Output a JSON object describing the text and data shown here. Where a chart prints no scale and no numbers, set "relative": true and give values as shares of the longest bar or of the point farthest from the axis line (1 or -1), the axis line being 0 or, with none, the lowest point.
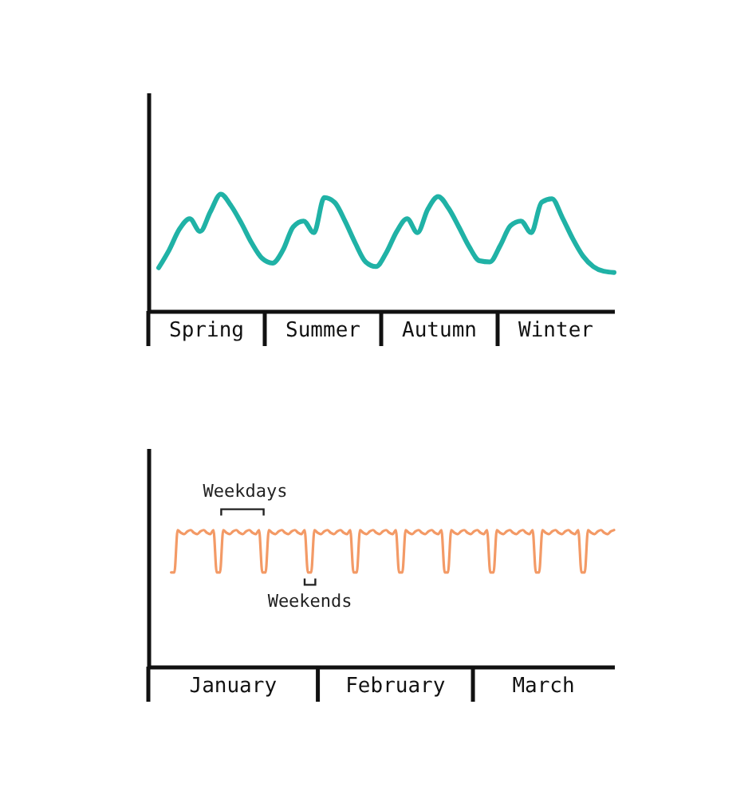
{
  "chart_data": [
    {
      "type": "line",
      "relative": true,
      "categories": [
        null,
        null,
        null,
        null,
        null,
        null,
        null,
        null,
        null,
        null,
        null,
        null,
        null,
        null,
        null,
        null,
        null,
        null,
        null,
        null,
        null,
        null,
        null,
        null,
        null,
        null,
        null,
        null,
        null,
        null,
        null,
        null,
        null,
        null,
        null,
        null,
        null,
        null,
        null,
        null,
        null,
        null,
        null,
        null,
        null
      ],
      "annotations": [
        "Spring",
        "Summer",
        "Autumn",
        "Winter"
      ],
      "series": [
        {
          "color": "#20b2a6",
          "values": [
            0.37,
            0.52,
            0.7,
            0.79,
            0.68,
            0.85,
            1,
            0.9,
            0.75,
            0.58,
            0.45,
            0.41,
            0.52,
            0.72,
            0.77,
            0.67,
            0.97,
            0.93,
            0.77,
            0.58,
            0.42,
            0.38,
            0.5,
            0.68,
            0.79,
            0.67,
            0.87,
            0.98,
            0.88,
            0.72,
            0.55,
            0.43,
            0.42,
            0.56,
            0.73,
            0.77,
            0.67,
            0.93,
            0.96,
            0.8,
            0.62,
            0.47,
            0.38,
            0.34,
            0.33
          ]
        }
      ]
    },
    {
      "type": "line",
      "relative": true,
      "categories": [
        null,
        null,
        null,
        null,
        null,
        null,
        null,
        null,
        null,
        null,
        null,
        null,
        null,
        null,
        null,
        null,
        null,
        null,
        null,
        null,
        null,
        null,
        null,
        null,
        null,
        null,
        null,
        null,
        null,
        null,
        null,
        null,
        null,
        null,
        null,
        null,
        null,
        null,
        null,
        null,
        null,
        null,
        null,
        null,
        null,
        null,
        null,
        null,
        null,
        null,
        null,
        null,
        null,
        null,
        null,
        null,
        null,
        null,
        null,
        null,
        null,
        null,
        null,
        null,
        null,
        null,
        null,
        null,
        null,
        null,
        null,
        null,
        null,
        null,
        null,
        null,
        null,
        null,
        null,
        null,
        null,
        null,
        null,
        null,
        null,
        null,
        null,
        null,
        null,
        null,
        null,
        null,
        null,
        null,
        null,
        null,
        null,
        null,
        null,
        null,
        null,
        null,
        null,
        null,
        null,
        null,
        null,
        null,
        null,
        null,
        null,
        null,
        null,
        null,
        null,
        null,
        null,
        null,
        null,
        null,
        null,
        null,
        null,
        null,
        null,
        null,
        null,
        null,
        null,
        null,
        null,
        null,
        null,
        null,
        null,
        null,
        null
      ],
      "annotations": [
        "January",
        "February",
        "March",
        "Weekdays",
        "Weekends"
      ],
      "series": [
        {
          "color": "#f39a66",
          "values": [
            0.69,
            0.69,
            1,
            0.98,
            0.97,
            0.99,
            1,
            0.98,
            0.97,
            0.99,
            1,
            0.98,
            0.97,
            1,
            0.69,
            0.69,
            1,
            0.98,
            0.97,
            0.99,
            1,
            0.98,
            0.97,
            0.99,
            1,
            0.98,
            0.97,
            1,
            0.69,
            0.69,
            1,
            0.98,
            0.97,
            0.99,
            1,
            0.98,
            0.97,
            0.99,
            1,
            0.98,
            0.97,
            1,
            0.69,
            0.69,
            1,
            0.98,
            0.97,
            0.99,
            1,
            0.98,
            0.97,
            0.99,
            1,
            0.98,
            0.97,
            1,
            0.69,
            0.69,
            1,
            0.98,
            0.97,
            0.99,
            1,
            0.98,
            0.97,
            0.99,
            1,
            0.98,
            0.97,
            1,
            0.69,
            0.69,
            1,
            0.98,
            0.97,
            0.99,
            1,
            0.98,
            0.97,
            0.99,
            1,
            0.98,
            0.97,
            1,
            0.69,
            0.69,
            1,
            0.98,
            0.97,
            0.99,
            1,
            0.98,
            0.97,
            0.99,
            1,
            0.98,
            0.97,
            1,
            0.69,
            0.69,
            1,
            0.98,
            0.97,
            0.99,
            1,
            0.98,
            0.97,
            0.99,
            1,
            0.98,
            0.97,
            1,
            0.69,
            0.69,
            1,
            0.98,
            0.97,
            0.99,
            1,
            0.98,
            0.97,
            0.99,
            1,
            0.98,
            0.97,
            1,
            0.69,
            0.69,
            1,
            0.98,
            0.97,
            0.99,
            1,
            0.98,
            0.97,
            0.99,
            1
          ]
        }
      ]
    }
  ]
}
